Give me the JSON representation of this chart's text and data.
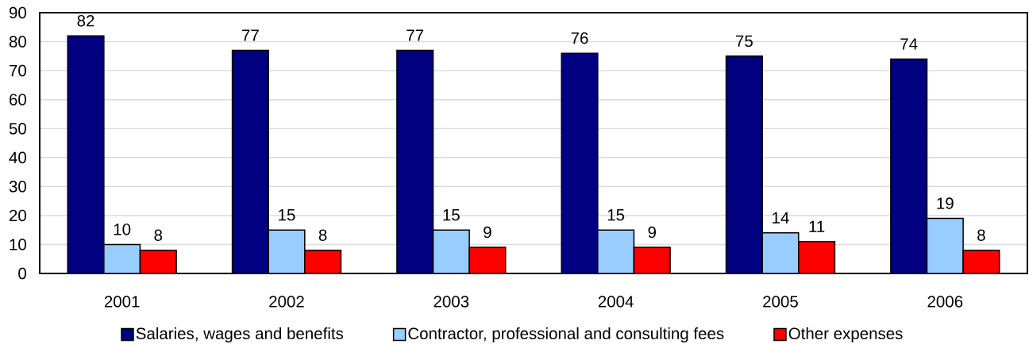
{
  "chart_data": {
    "type": "bar",
    "categories": [
      "2001",
      "2002",
      "2003",
      "2004",
      "2005",
      "2006"
    ],
    "series": [
      {
        "name": "Salaries, wages and benefits",
        "color": "#000080",
        "values": [
          82,
          77,
          77,
          76,
          75,
          74
        ]
      },
      {
        "name": "Contractor, professional and consulting fees",
        "color": "#99ccff",
        "values": [
          10,
          15,
          15,
          15,
          14,
          19
        ]
      },
      {
        "name": "Other expenses",
        "color": "#ff0000",
        "values": [
          8,
          8,
          9,
          9,
          11,
          8
        ]
      }
    ],
    "ylim": [
      0,
      90
    ],
    "yticks": [
      0,
      10,
      20,
      30,
      40,
      50,
      60,
      70,
      80,
      90
    ],
    "grid": "y",
    "legend": "bottom",
    "data_labels": true
  }
}
